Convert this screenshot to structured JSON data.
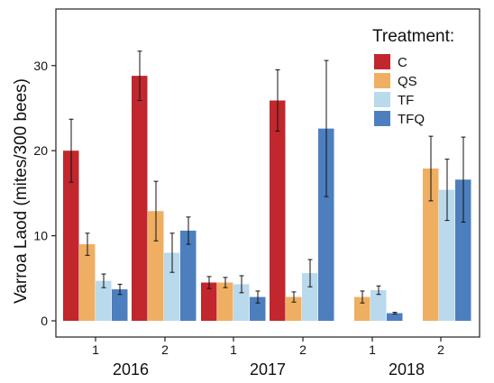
{
  "chart_data": {
    "type": "bar",
    "ylabel": "Varroa Laod (mites/300 bees)",
    "xlabel": "",
    "ylim": [
      0,
      37
    ],
    "yticks": [
      0,
      10,
      20,
      30
    ],
    "grid": false,
    "legend": {
      "title": "Treatment:",
      "placement": "top-right",
      "entries": [
        "C",
        "QS",
        "TF",
        "TFQ"
      ]
    },
    "colors": {
      "C": "#c1272d",
      "QS": "#efaf62",
      "TF": "#b9d9ec",
      "TFQ": "#4d7fbe"
    },
    "groups": [
      {
        "year": "2016",
        "categories": [
          "1",
          "2"
        ]
      },
      {
        "year": "2017",
        "categories": [
          "1",
          "2"
        ]
      },
      {
        "year": "2018",
        "categories": [
          "1",
          "2"
        ]
      }
    ],
    "categories": [
      "2016-1",
      "2016-2",
      "2017-1",
      "2017-2",
      "2018-1",
      "2018-2"
    ],
    "series": [
      {
        "name": "C",
        "values": [
          20.0,
          28.8,
          4.5,
          25.9,
          null,
          null
        ],
        "err": [
          3.7,
          2.9,
          0.7,
          3.6,
          null,
          null
        ]
      },
      {
        "name": "QS",
        "values": [
          9.0,
          12.9,
          4.5,
          2.8,
          2.8,
          17.9
        ],
        "err": [
          1.3,
          3.5,
          0.6,
          0.6,
          0.7,
          3.8
        ]
      },
      {
        "name": "TF",
        "values": [
          4.7,
          8.0,
          4.3,
          5.6,
          3.6,
          15.4
        ],
        "err": [
          0.8,
          2.3,
          1.0,
          1.6,
          0.5,
          3.6
        ]
      },
      {
        "name": "TFQ",
        "values": [
          3.7,
          10.6,
          2.8,
          22.6,
          0.9,
          16.6
        ],
        "err": [
          0.6,
          1.6,
          0.7,
          8.0,
          0.1,
          5.0
        ]
      }
    ]
  }
}
